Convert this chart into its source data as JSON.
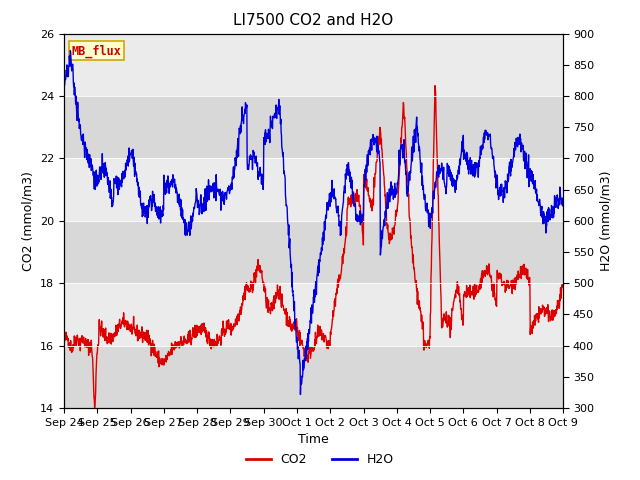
{
  "title": "LI7500 CO2 and H2O",
  "xlabel": "Time",
  "ylabel_left": "CO2 (mmol/m3)",
  "ylabel_right": "H2O (mmol/m3)",
  "ylim_left": [
    14,
    26
  ],
  "ylim_right": [
    300,
    900
  ],
  "yticks_left": [
    14,
    16,
    18,
    20,
    22,
    24,
    26
  ],
  "yticks_right": [
    300,
    350,
    400,
    450,
    500,
    550,
    600,
    650,
    700,
    750,
    800,
    850,
    900
  ],
  "xtick_labels": [
    "Sep 24",
    "Sep 25",
    "Sep 26",
    "Sep 27",
    "Sep 28",
    "Sep 29",
    "Sep 30",
    "Oct 1",
    "Oct 2",
    "Oct 3",
    "Oct 4",
    "Oct 5",
    "Oct 6",
    "Oct 7",
    "Oct 8",
    "Oct 9"
  ],
  "co2_color": "#dd0000",
  "h2o_color": "#0000dd",
  "background_color": "#ffffff",
  "plot_bg_color": "#e8e8e8",
  "band_light_color": "#ebebeb",
  "band_dark_color": "#d8d8d8",
  "mb_flux_box_color": "#ffffcc",
  "mb_flux_text_color": "#cc0000",
  "mb_flux_border_color": "#ccaa00",
  "line_width": 1.0,
  "title_fontsize": 11,
  "axis_label_fontsize": 9,
  "tick_fontsize": 8,
  "legend_fontsize": 9
}
